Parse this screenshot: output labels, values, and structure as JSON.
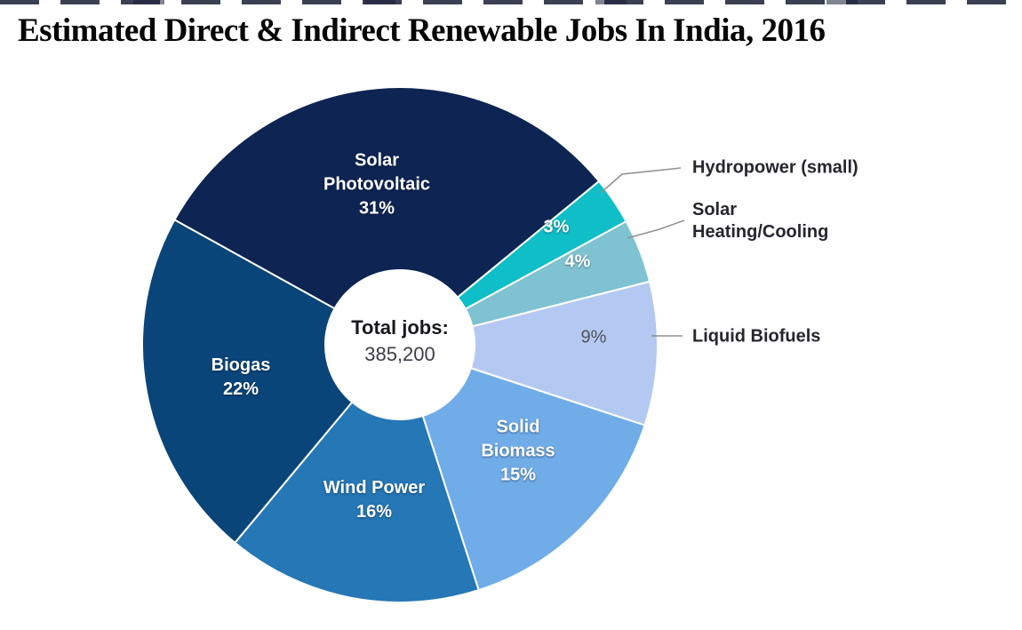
{
  "title": "Estimated Direct & Indirect Renewable Jobs In India, 2016",
  "chart_data": {
    "type": "pie",
    "subtype": "donut",
    "title": "Estimated Direct & Indirect Renewable Jobs In India, 2016",
    "center_label": "Total jobs:",
    "center_value": "385,200",
    "total_jobs": 385200,
    "units": "% of total jobs",
    "start_angle_deg": -61,
    "direction": "clockwise",
    "legend_position": "right-callouts",
    "slices": [
      {
        "name": "Solar Photovoltaic",
        "pct": 31,
        "pct_label": "31%",
        "color": "#0e2453",
        "line1": "Solar",
        "line2": "Photovoltaic",
        "label_placement": "on-slice"
      },
      {
        "name": "Hydropower (small)",
        "pct": 3,
        "pct_label": "3%",
        "color": "#0fbec7",
        "callout": "Hydropower (small)",
        "label_placement": "callout"
      },
      {
        "name": "Solar Heating/Cooling",
        "pct": 4,
        "pct_label": "4%",
        "color": "#7fc2d1",
        "callout_line1": "Solar",
        "callout_line2": "Heating/Cooling",
        "label_placement": "callout"
      },
      {
        "name": "Liquid Biofuels",
        "pct": 9,
        "pct_label": "9%",
        "color": "#b4c9f1",
        "callout": "Liquid Biofuels",
        "label_placement": "callout"
      },
      {
        "name": "Solid Biomass",
        "pct": 15,
        "pct_label": "15%",
        "color": "#70ace8",
        "line1": "Solid",
        "line2": "Biomass",
        "label_placement": "on-slice"
      },
      {
        "name": "Wind Power",
        "pct": 16,
        "pct_label": "16%",
        "color": "#2577b5",
        "line1": "Wind Power",
        "label_placement": "on-slice"
      },
      {
        "name": "Biogas",
        "pct": 22,
        "pct_label": "22%",
        "color": "#0a4579",
        "line1": "Biogas",
        "label_placement": "on-slice"
      }
    ]
  }
}
